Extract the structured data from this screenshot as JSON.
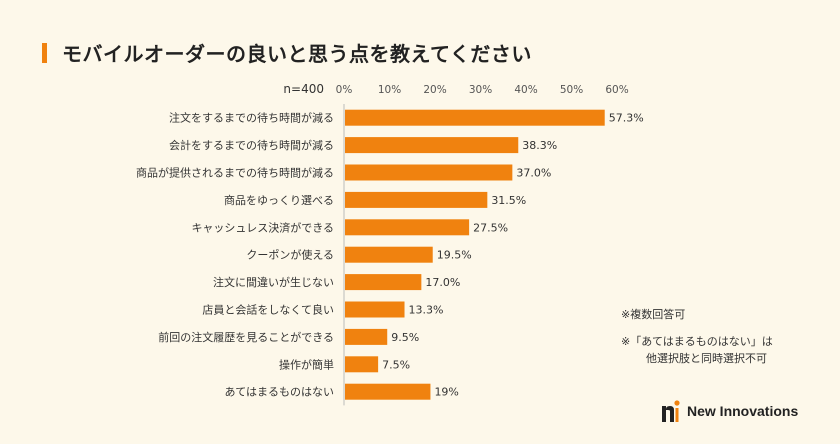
{
  "title": "モバイルオーダーの良いと思う点を教えてください",
  "colors": {
    "bar": "#f0820f",
    "accent": "#f0820f",
    "background": "#fdf8ea",
    "axis": "#bbbbbb"
  },
  "chart_data": {
    "type": "bar",
    "orientation": "horizontal",
    "sample_label": "n=400",
    "categories": [
      "注文をするまでの待ち時間が減る",
      "会計をするまでの待ち時間が減る",
      "商品が提供されるまでの待ち時間が減る",
      "商品をゆっくり選べる",
      "キャッシュレス決済ができる",
      "クーポンが使える",
      "注文に間違いが生じない",
      "店員と会話をしなくて良い",
      "前回の注文履歴を見ることができる",
      "操作が簡単",
      "あてはまるものはない"
    ],
    "values": [
      57.3,
      38.3,
      37.0,
      31.5,
      27.5,
      19.5,
      17.0,
      13.3,
      9.5,
      7.5,
      19
    ],
    "value_labels": [
      "57.3%",
      "38.3%",
      "37.0%",
      "31.5%",
      "27.5%",
      "19.5%",
      "17.0%",
      "13.3%",
      "9.5%",
      "7.5%",
      "19%"
    ],
    "xlim": [
      0,
      60
    ],
    "ticks": [
      "0%",
      "10%",
      "20%",
      "30%",
      "40%",
      "50%",
      "60%"
    ],
    "grid": false,
    "axis_position": "top"
  },
  "notes": {
    "line1": "※複数回答可",
    "line2": "※「あてはまるものはない」は",
    "line3": "他選択肢と同時選択不可"
  },
  "brand": {
    "name": "New Innovations",
    "logo_icon": "ni-logo-icon"
  }
}
